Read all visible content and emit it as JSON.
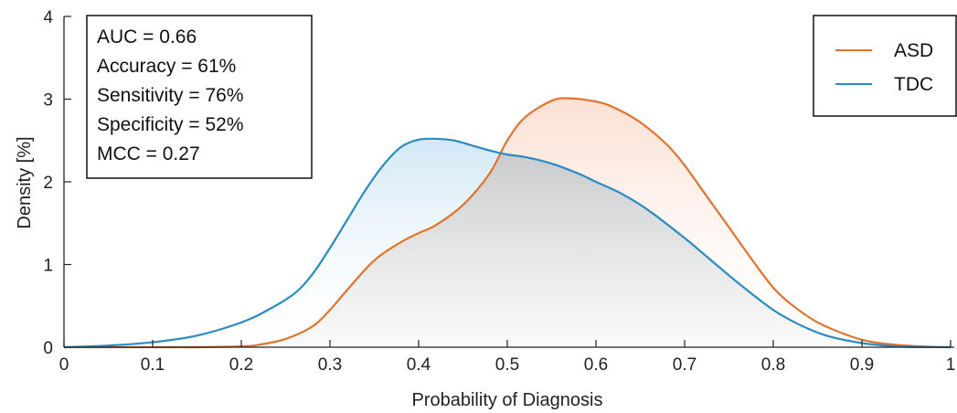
{
  "chart_data": {
    "type": "area",
    "xlabel": "Probability of Diagnosis",
    "ylabel": "Density [%]",
    "xlim": [
      0,
      1
    ],
    "ylim": [
      0,
      4
    ],
    "xticks": [
      0,
      0.1,
      0.2,
      0.3,
      0.4,
      0.5,
      0.6,
      0.7,
      0.8,
      0.9,
      1
    ],
    "xtick_labels": [
      "0",
      "0.1",
      "0.2",
      "0.3",
      "0.4",
      "0.5",
      "0.6",
      "0.7",
      "0.8",
      "0.9",
      "1"
    ],
    "yticks": [
      0,
      1,
      2,
      3,
      4
    ],
    "ytick_labels": [
      "0",
      "1",
      "2",
      "3",
      "4"
    ],
    "grid": false,
    "legend": "top-right",
    "overlap_color": "#c8c8c8",
    "stats": [
      "AUC = 0.66",
      "Accuracy = 61%",
      "Sensitivity = 76%",
      "Specificity = 52%",
      "MCC = 0.27"
    ],
    "series": [
      {
        "name": "ASD",
        "color": "#e0742e",
        "x": [
          0,
          0.1,
          0.15,
          0.2,
          0.22,
          0.25,
          0.28,
          0.3,
          0.32,
          0.35,
          0.38,
          0.4,
          0.42,
          0.45,
          0.48,
          0.5,
          0.52,
          0.55,
          0.57,
          0.6,
          0.62,
          0.65,
          0.68,
          0.7,
          0.72,
          0.75,
          0.78,
          0.8,
          0.82,
          0.85,
          0.88,
          0.9,
          0.92,
          0.95,
          0.98,
          1
        ],
        "values": [
          0,
          0,
          0,
          0.01,
          0.03,
          0.1,
          0.25,
          0.45,
          0.7,
          1.05,
          1.27,
          1.38,
          1.48,
          1.72,
          2.1,
          2.5,
          2.78,
          2.98,
          3.01,
          2.97,
          2.9,
          2.72,
          2.45,
          2.2,
          1.9,
          1.45,
          1.0,
          0.72,
          0.52,
          0.3,
          0.16,
          0.09,
          0.05,
          0.02,
          0.005,
          0
        ]
      },
      {
        "name": "TDC",
        "color": "#2a8ac4",
        "x": [
          0,
          0.05,
          0.1,
          0.15,
          0.2,
          0.23,
          0.26,
          0.28,
          0.3,
          0.32,
          0.34,
          0.36,
          0.38,
          0.4,
          0.42,
          0.44,
          0.46,
          0.48,
          0.5,
          0.52,
          0.55,
          0.58,
          0.6,
          0.63,
          0.66,
          0.7,
          0.73,
          0.76,
          0.8,
          0.83,
          0.86,
          0.9,
          0.94,
          0.97,
          1
        ],
        "values": [
          0,
          0.02,
          0.06,
          0.14,
          0.3,
          0.45,
          0.65,
          0.88,
          1.2,
          1.55,
          1.9,
          2.2,
          2.42,
          2.51,
          2.52,
          2.5,
          2.44,
          2.38,
          2.33,
          2.3,
          2.22,
          2.1,
          2.0,
          1.85,
          1.65,
          1.32,
          1.05,
          0.78,
          0.45,
          0.27,
          0.14,
          0.05,
          0.01,
          0.002,
          0
        ]
      }
    ]
  }
}
